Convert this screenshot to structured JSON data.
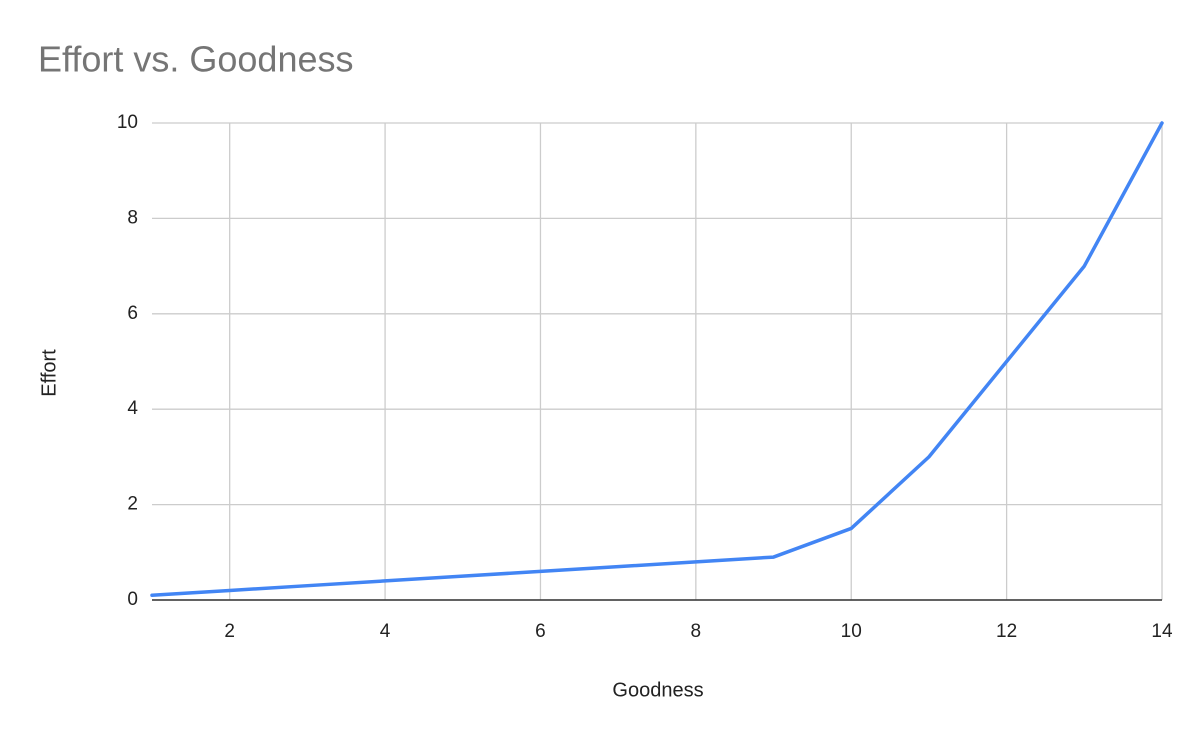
{
  "chart_data": {
    "type": "line",
    "title": "Effort vs. Goodness",
    "x_label": "Goodness",
    "y_label": "Effort",
    "x": [
      1,
      2,
      3,
      4,
      5,
      6,
      7,
      8,
      9,
      10,
      11,
      12,
      13,
      14
    ],
    "values": [
      0.1,
      0.2,
      0.3,
      0.4,
      0.5,
      0.6,
      0.7,
      0.8,
      0.9,
      1.5,
      3,
      5,
      7,
      10
    ],
    "color": "#4285f4",
    "xlim": [
      1,
      14
    ],
    "xticks": [
      2,
      4,
      6,
      8,
      10,
      12,
      14
    ],
    "ylim": [
      0,
      10
    ],
    "yticks": [
      0,
      2,
      4,
      6,
      8,
      10
    ],
    "grid": true
  }
}
